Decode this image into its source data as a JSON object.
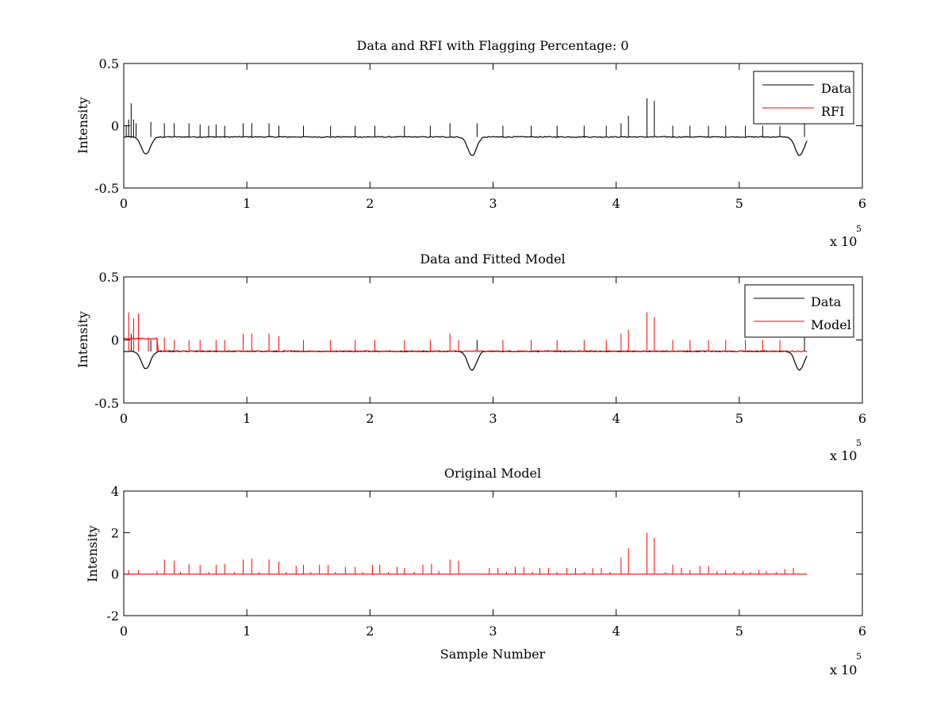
{
  "figure": {
    "background": "#ffffff",
    "colors": {
      "data": "#000000",
      "model": "#ff0000",
      "axes": "#000000"
    }
  },
  "chart_data": [
    {
      "type": "line",
      "title": "Data and RFI with Flagging Percentage: 0",
      "xlabel": "",
      "ylabel": "Intensity",
      "xlim": [
        0,
        600000
      ],
      "ylim": [
        -0.5,
        0.5
      ],
      "xticks": [
        0,
        1,
        2,
        3,
        4,
        5,
        6
      ],
      "xtick_labels": [
        "0",
        "1",
        "2",
        "3",
        "4",
        "5",
        "6"
      ],
      "yticks": [
        -0.5,
        0,
        0.5
      ],
      "ytick_labels": [
        "-0.5",
        "0",
        "0.5"
      ],
      "x_exponent": {
        "base": "x 10",
        "power": "5"
      },
      "grid": false,
      "legend": {
        "position": "top-right",
        "entries": [
          "Data",
          "RFI"
        ]
      },
      "series": [
        {
          "name": "Data",
          "color": "#000000",
          "x_start": 0,
          "x_end": 555000,
          "baseline": -0.09,
          "dips": [
            [
              18000,
              -0.23
            ],
            [
              283000,
              -0.24
            ],
            [
              549000,
              -0.24
            ]
          ],
          "spikes": [
            [
              2000,
              0.0
            ],
            [
              4000,
              0.05
            ],
            [
              6000,
              0.18
            ],
            [
              8000,
              0.05
            ],
            [
              10000,
              0.02
            ],
            [
              22000,
              0.03
            ],
            [
              33000,
              0.02
            ],
            [
              41000,
              0.02
            ],
            [
              53000,
              0.02
            ],
            [
              62000,
              0.01
            ],
            [
              69000,
              0.0
            ],
            [
              75000,
              0.01
            ],
            [
              82000,
              0.0
            ],
            [
              97000,
              0.02
            ],
            [
              104000,
              0.02
            ],
            [
              118000,
              0.02
            ],
            [
              126000,
              0.0
            ],
            [
              146000,
              0.0
            ],
            [
              168000,
              0.0
            ],
            [
              188000,
              0.0
            ],
            [
              204000,
              0.0
            ],
            [
              228000,
              0.0
            ],
            [
              249000,
              0.0
            ],
            [
              265000,
              0.02
            ],
            [
              287000,
              0.02
            ],
            [
              308000,
              0.0
            ],
            [
              331000,
              0.0
            ],
            [
              352000,
              0.0
            ],
            [
              374000,
              0.0
            ],
            [
              392000,
              0.0
            ],
            [
              404000,
              0.02
            ],
            [
              410000,
              0.08
            ],
            [
              425000,
              0.22
            ],
            [
              431000,
              0.2
            ],
            [
              446000,
              0.0
            ],
            [
              460000,
              0.0
            ],
            [
              475000,
              0.0
            ],
            [
              489000,
              0.0
            ],
            [
              505000,
              0.0
            ],
            [
              519000,
              0.0
            ],
            [
              533000,
              0.0
            ],
            [
              553000,
              0.02
            ]
          ]
        },
        {
          "name": "RFI",
          "color": "#ff0000",
          "values": []
        }
      ]
    },
    {
      "type": "line",
      "title": "Data and Fitted Model",
      "xlabel": "",
      "ylabel": "Intensity",
      "xlim": [
        0,
        600000
      ],
      "ylim": [
        -0.5,
        0.5
      ],
      "xticks": [
        0,
        1,
        2,
        3,
        4,
        5,
        6
      ],
      "xtick_labels": [
        "0",
        "1",
        "2",
        "3",
        "4",
        "5",
        "6"
      ],
      "yticks": [
        -0.5,
        0,
        0.5
      ],
      "ytick_labels": [
        "-0.5",
        "0",
        "0.5"
      ],
      "x_exponent": {
        "base": "x 10",
        "power": "5"
      },
      "grid": false,
      "legend": {
        "position": "top-right",
        "entries": [
          "Data",
          "Model"
        ]
      },
      "series": [
        {
          "name": "Data",
          "color": "#000000",
          "x_start": 0,
          "x_end": 555000,
          "baseline": -0.09,
          "dips": [
            [
              18000,
              -0.23
            ],
            [
              283000,
              -0.24
            ],
            [
              549000,
              -0.24
            ]
          ],
          "spikes": [
            [
              6000,
              0.05
            ],
            [
              22000,
              0.0
            ],
            [
              287000,
              0.0
            ],
            [
              553000,
              0.02
            ]
          ]
        },
        {
          "name": "Model",
          "color": "#ff0000",
          "x_start": 0,
          "x_end": 555000,
          "baseline": -0.09,
          "plateau": [
            0,
            27000,
            0.01
          ],
          "spikes": [
            [
              4000,
              0.22
            ],
            [
              8000,
              0.17
            ],
            [
              12000,
              0.21
            ],
            [
              20000,
              0.01
            ],
            [
              27000,
              0.02
            ],
            [
              33000,
              0.02
            ],
            [
              41000,
              0.0
            ],
            [
              53000,
              0.0
            ],
            [
              62000,
              0.0
            ],
            [
              75000,
              0.0
            ],
            [
              82000,
              0.0
            ],
            [
              97000,
              0.05
            ],
            [
              104000,
              0.05
            ],
            [
              118000,
              0.05
            ],
            [
              126000,
              0.03
            ],
            [
              146000,
              0.0
            ],
            [
              168000,
              0.0
            ],
            [
              188000,
              0.0
            ],
            [
              204000,
              0.0
            ],
            [
              228000,
              0.0
            ],
            [
              249000,
              0.0
            ],
            [
              265000,
              0.05
            ],
            [
              272000,
              0.0
            ],
            [
              308000,
              0.0
            ],
            [
              331000,
              0.0
            ],
            [
              352000,
              0.0
            ],
            [
              374000,
              0.0
            ],
            [
              392000,
              0.0
            ],
            [
              404000,
              0.05
            ],
            [
              410000,
              0.08
            ],
            [
              425000,
              0.22
            ],
            [
              431000,
              0.18
            ],
            [
              446000,
              0.0
            ],
            [
              460000,
              0.0
            ],
            [
              475000,
              0.0
            ],
            [
              489000,
              0.0
            ],
            [
              505000,
              0.0
            ],
            [
              519000,
              0.0
            ],
            [
              533000,
              0.0
            ]
          ]
        }
      ]
    },
    {
      "type": "line",
      "title": "Original Model",
      "xlabel": "Sample Number",
      "ylabel": "Intensity",
      "xlim": [
        0,
        600000
      ],
      "ylim": [
        -2,
        4
      ],
      "xticks": [
        0,
        1,
        2,
        3,
        4,
        5,
        6
      ],
      "xtick_labels": [
        "0",
        "1",
        "2",
        "3",
        "4",
        "5",
        "6"
      ],
      "yticks": [
        -2,
        0,
        2,
        4
      ],
      "ytick_labels": [
        "-2",
        "0",
        "2",
        "4"
      ],
      "x_exponent": {
        "base": "x 10",
        "power": "5"
      },
      "grid": false,
      "legend": null,
      "series": [
        {
          "name": "",
          "color": "#ff0000",
          "x_start": 0,
          "x_end": 555000,
          "baseline": 0,
          "spikes": [
            [
              4000,
              0.2
            ],
            [
              12000,
              0.2
            ],
            [
              27000,
              0.15
            ],
            [
              33000,
              0.7
            ],
            [
              41000,
              0.65
            ],
            [
              46000,
              0.1
            ],
            [
              53000,
              0.5
            ],
            [
              62000,
              0.45
            ],
            [
              69000,
              0.1
            ],
            [
              75000,
              0.45
            ],
            [
              82000,
              0.5
            ],
            [
              90000,
              0.1
            ],
            [
              97000,
              0.7
            ],
            [
              104000,
              0.75
            ],
            [
              110000,
              0.1
            ],
            [
              118000,
              0.7
            ],
            [
              126000,
              0.6
            ],
            [
              132000,
              0.1
            ],
            [
              140000,
              0.4
            ],
            [
              146000,
              0.45
            ],
            [
              152000,
              0.1
            ],
            [
              159000,
              0.45
            ],
            [
              166000,
              0.45
            ],
            [
              172000,
              0.1
            ],
            [
              180000,
              0.35
            ],
            [
              188000,
              0.35
            ],
            [
              194000,
              0.1
            ],
            [
              202000,
              0.45
            ],
            [
              208000,
              0.45
            ],
            [
              215000,
              0.1
            ],
            [
              222000,
              0.35
            ],
            [
              228000,
              0.3
            ],
            [
              236000,
              0.1
            ],
            [
              243000,
              0.45
            ],
            [
              250000,
              0.5
            ],
            [
              256000,
              0.15
            ],
            [
              265000,
              0.7
            ],
            [
              272000,
              0.65
            ],
            [
              297000,
              0.3
            ],
            [
              304000,
              0.3
            ],
            [
              311000,
              0.1
            ],
            [
              318000,
              0.35
            ],
            [
              325000,
              0.35
            ],
            [
              332000,
              0.1
            ],
            [
              338000,
              0.3
            ],
            [
              345000,
              0.3
            ],
            [
              352000,
              0.1
            ],
            [
              360000,
              0.3
            ],
            [
              367000,
              0.3
            ],
            [
              374000,
              0.1
            ],
            [
              381000,
              0.3
            ],
            [
              388000,
              0.3
            ],
            [
              395000,
              0.1
            ],
            [
              404000,
              0.8
            ],
            [
              410000,
              1.25
            ],
            [
              425000,
              2.0
            ],
            [
              431000,
              1.75
            ],
            [
              440000,
              0.1
            ],
            [
              446000,
              0.45
            ],
            [
              453000,
              0.3
            ],
            [
              460000,
              0.2
            ],
            [
              468000,
              0.4
            ],
            [
              475000,
              0.4
            ],
            [
              482000,
              0.15
            ],
            [
              489000,
              0.2
            ],
            [
              496000,
              0.1
            ],
            [
              503000,
              0.15
            ],
            [
              509000,
              0.1
            ],
            [
              516000,
              0.2
            ],
            [
              522000,
              0.15
            ],
            [
              530000,
              0.1
            ],
            [
              537000,
              0.25
            ],
            [
              544000,
              0.3
            ]
          ]
        }
      ]
    }
  ]
}
